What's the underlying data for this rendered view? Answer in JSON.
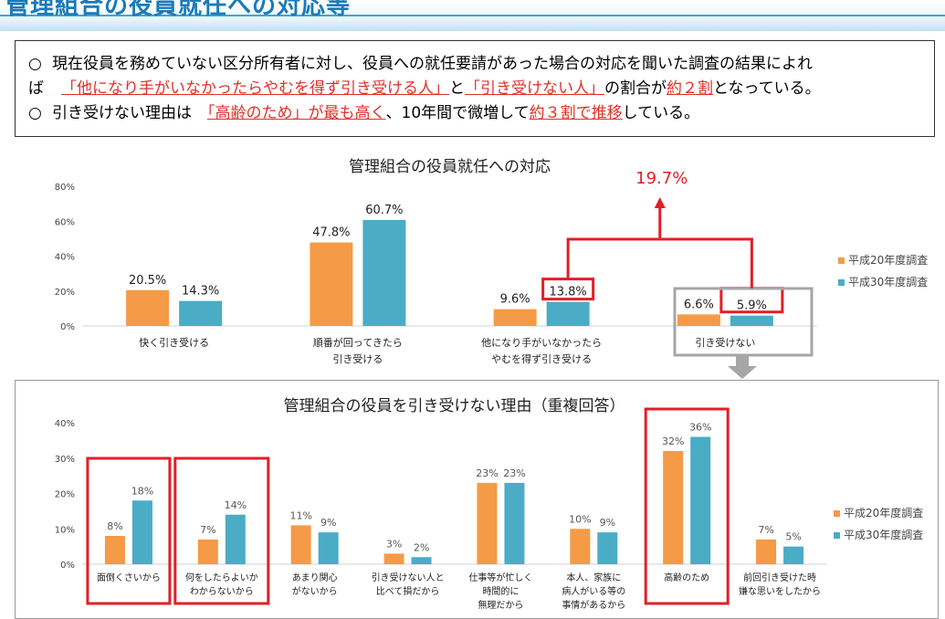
{
  "header": {
    "title": "管理組合の役員就任への対応等"
  },
  "summary": {
    "bullet_symbol": "○",
    "line1_prefix": "現在役員を務めていない区分所有者に対し、役員への就任要請があった場合の対応を聞いた調査の結果によれ",
    "line2_prefix": "ば",
    "line2_red1": "「他になり手がいなかったらやむを得ず引き受ける人」",
    "line2_mid": "と",
    "line2_red2": "「引き受けない人」",
    "line2_mid2": "の割合が",
    "line2_red3": "約２割",
    "line2_suffix": "となっている。",
    "line3_prefix": "引き受けない理由は",
    "line3_red1": "「高齢のため」が最も高く",
    "line3_mid": "、10年間で微増して",
    "line3_red2": "約３割で推移",
    "line3_suffix": "している。"
  },
  "colors": {
    "h20": "#f59a47",
    "h30": "#4bacc6",
    "highlight": "#e41e26",
    "red_text": "#e0302a",
    "arrow_gray": "#a6a6a6"
  },
  "chart_data": [
    {
      "type": "bar",
      "title": "管理組合の役員就任への対応",
      "categories": [
        [
          "快く引き受ける"
        ],
        [
          "順番が回ってきたら",
          "引き受ける"
        ],
        [
          "他になり手がいなかったら",
          "やむを得ず引き受ける"
        ],
        [
          "引き受けない"
        ]
      ],
      "series": [
        {
          "name": "平成20年度調査",
          "values": [
            20.5,
            47.8,
            9.6,
            6.6
          ],
          "labels": [
            "20.5%",
            "47.8%",
            "9.6%",
            "6.6%"
          ]
        },
        {
          "name": "平成30年度調査",
          "values": [
            14.3,
            60.7,
            13.8,
            5.9
          ],
          "labels": [
            "14.3%",
            "60.7%",
            "13.8%",
            "5.9%"
          ]
        }
      ],
      "yticks": [
        "0%",
        "20%",
        "40%",
        "60%",
        "80%"
      ],
      "ylim": [
        0,
        80
      ],
      "legend": "right",
      "annotation": "19.7%"
    },
    {
      "type": "bar",
      "title": "管理組合の役員を引き受けない理由（重複回答）",
      "categories": [
        [
          "面倒くさいから"
        ],
        [
          "何をしたらよいか",
          "わからないから"
        ],
        [
          "あまり関心",
          "がないから"
        ],
        [
          "引き受けない人と",
          "比べて損だから"
        ],
        [
          "仕事等が忙しく",
          "時間的に",
          "無理だから"
        ],
        [
          "本人、家族に",
          "病人がいる等の",
          "事情があるから"
        ],
        [
          "高齢のため"
        ],
        [
          "前回引き受けた時",
          "嫌な思いをしたから"
        ]
      ],
      "series": [
        {
          "name": "平成20年度調査",
          "values": [
            8,
            7,
            11,
            3,
            23,
            10,
            32,
            7
          ],
          "labels": [
            "8%",
            "7%",
            "11%",
            "3%",
            "23%",
            "10%",
            "32%",
            "7%"
          ]
        },
        {
          "name": "平成30年度調査",
          "values": [
            18,
            14,
            9,
            2,
            23,
            9,
            36,
            5
          ],
          "labels": [
            "18%",
            "14%",
            "9%",
            "2%",
            "23%",
            "9%",
            "36%",
            "5%"
          ]
        }
      ],
      "yticks": [
        "0%",
        "10%",
        "20%",
        "30%",
        "40%"
      ],
      "ylim": [
        0,
        40
      ],
      "legend": "right"
    }
  ]
}
